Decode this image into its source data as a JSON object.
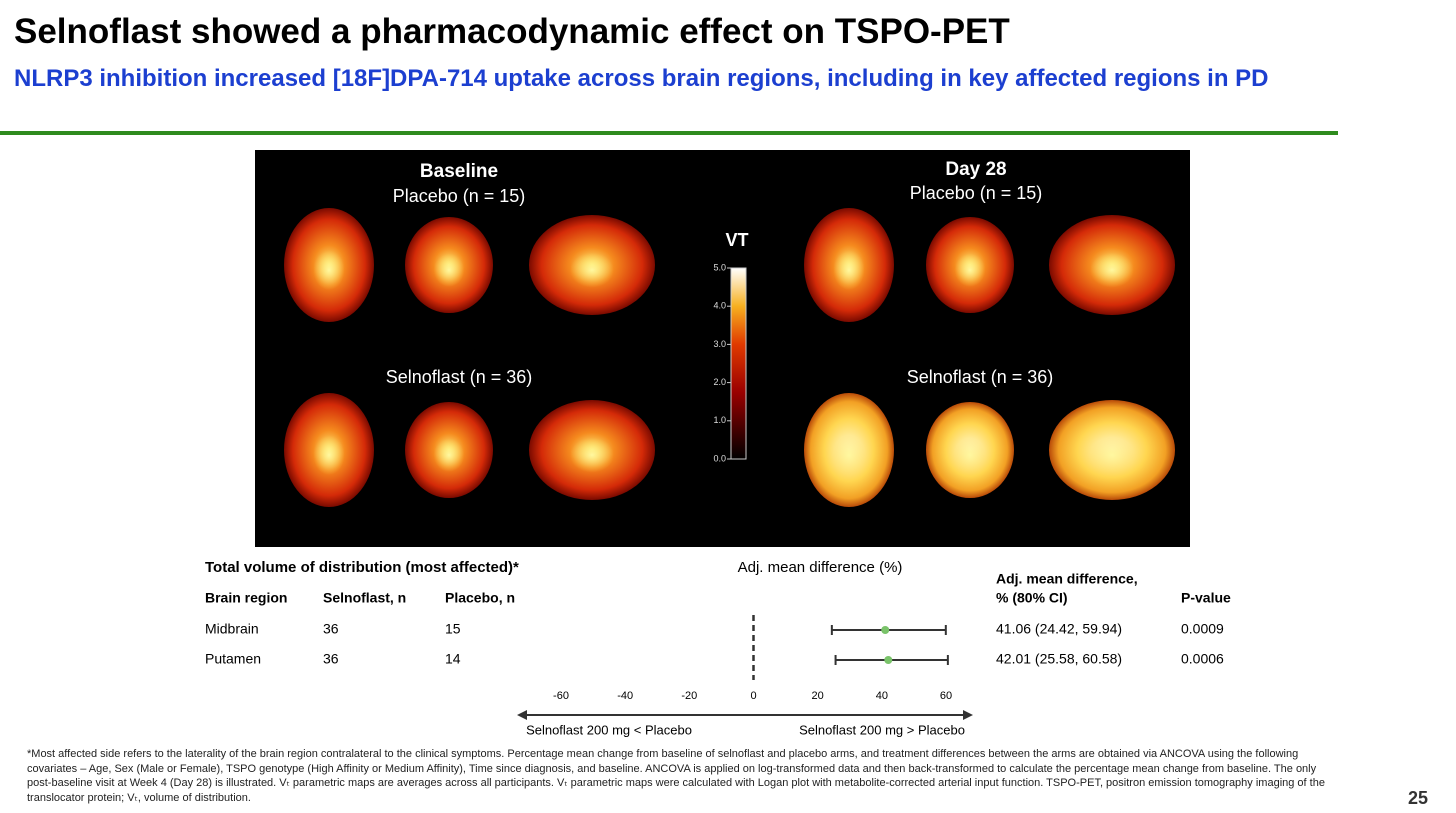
{
  "header": {
    "title": "Selnoflast showed a pharmacodynamic effect on TSPO-PET",
    "subtitle": "NLRP3 inhibition increased [18F]DPA-714 uptake across brain regions, including in key affected regions in PD"
  },
  "images": {
    "baseline": "Baseline",
    "day28": "Day 28",
    "labels": [
      "Placebo (n = 15)",
      "Selnoflast (n = 36)",
      "Placebo (n = 15)",
      "Selnoflast (n = 36)"
    ]
  },
  "colorbar": {
    "label": "VT",
    "lim": [
      0,
      5
    ],
    "ticks": [
      {
        "value": 0,
        "label": "0.0"
      },
      {
        "value": 1,
        "label": "1.0"
      },
      {
        "value": 2,
        "label": "2.0"
      },
      {
        "value": 3,
        "label": "3.0"
      },
      {
        "value": 4,
        "label": "4.0"
      },
      {
        "value": 5,
        "label": "5.0"
      }
    ]
  },
  "table": {
    "title": "Total volume of distribution (most affected)*",
    "headers": [
      "Brain region",
      "Selnoflast, n",
      "Placebo, n",
      "Adj. mean difference,",
      "% (80% CI)",
      "P-value"
    ],
    "rows": [
      [
        36,
        15,
        0.0009
      ],
      [
        36,
        14,
        0.0006
      ]
    ]
  },
  "chart_data": {
    "type": "forest",
    "xlabel": "Adj. mean difference (%)",
    "categories": [
      "Midbrain",
      "Putamen"
    ],
    "values": [
      41.06,
      42.01
    ],
    "ci_low": [
      24.42,
      25.58
    ],
    "ci_high": [
      59.94,
      60.58
    ],
    "value_labels": [
      "41.06 (24.42, 59.94)",
      "42.01 (25.58, 60.58)"
    ],
    "color": "#7ac36a",
    "xlim": [
      -60,
      60
    ],
    "xticks": [
      -60,
      -40,
      -20,
      0,
      20,
      40,
      60
    ],
    "arrow_labels": [
      "Selnoflast 200 mg < Placebo",
      "Selnoflast 200 mg > Placebo"
    ]
  },
  "footnote": "*Most affected side refers to the laterality of the brain region contralateral to the clinical symptoms. Percentage mean change from baseline of selnoflast and placebo arms, and treatment differences between the arms are obtained via ANCOVA using the following covariates – Age, Sex (Male or Female), TSPO genotype (High Affinity or Medium Affinity), Time since diagnosis, and baseline. ANCOVA is applied on log-transformed data and then back-transformed to calculate the percentage mean change from baseline. The only post-baseline visit at Week 4 (Day 28) is illustrated. Vₜ parametric maps are averages across all participants. Vₜ parametric maps were calculated with Logan plot with metabolite-corrected arterial input function. TSPO-PET, positron emission tomography imaging of the translocator protein; Vₜ, volume of distribution.",
  "page_number": "25"
}
